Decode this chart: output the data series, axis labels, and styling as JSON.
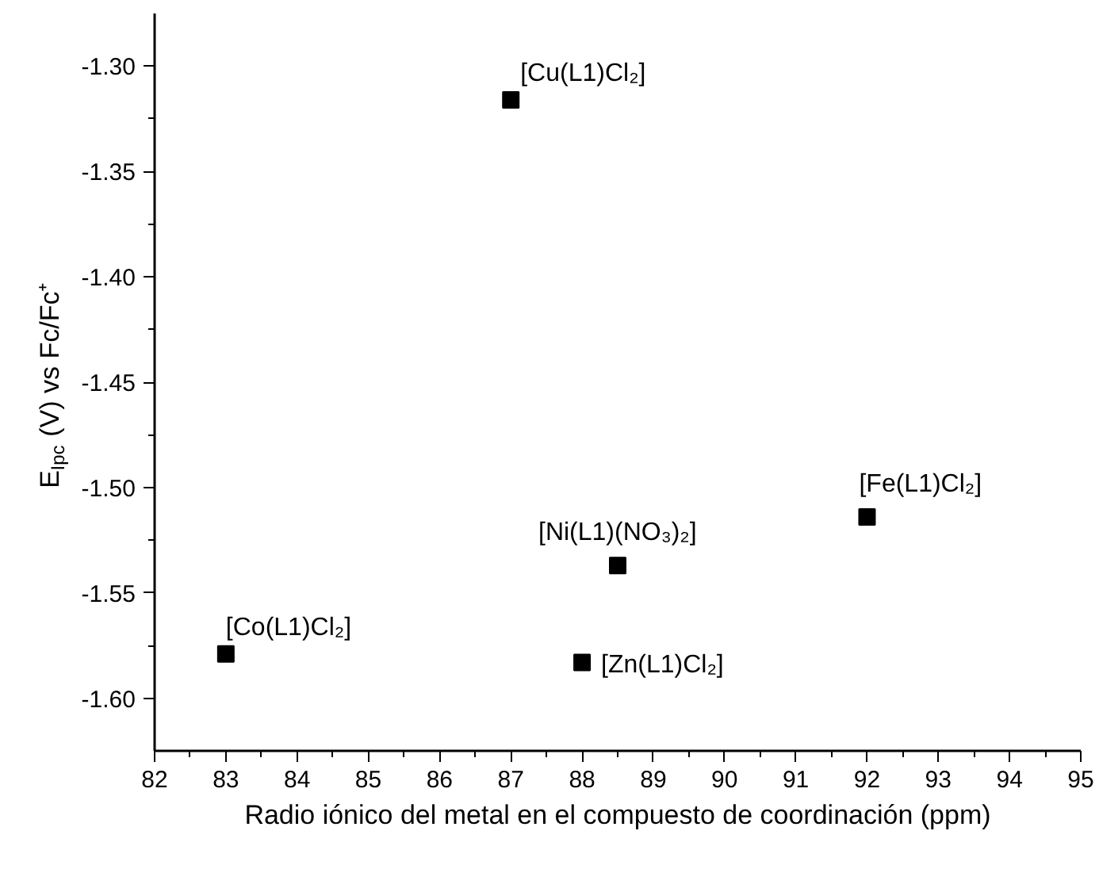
{
  "chart_data": {
    "type": "scatter",
    "xlabel": "Radio iónico del metal en el compuesto de coordinación (ppm)",
    "ylabel": "E$_{Ipc}$ (V) vs Fc/Fc⁺",
    "x": [
      87,
      83,
      92,
      88.5,
      88
    ],
    "values": [
      -1.316,
      -1.579,
      -1.514,
      -1.537,
      -1.583
    ],
    "color": "#000000",
    "marker": "square",
    "grid": false,
    "xlim": [
      82,
      95
    ],
    "xticks": [
      82,
      83,
      84,
      85,
      86,
      87,
      88,
      89,
      90,
      91,
      92,
      93,
      94,
      95
    ],
    "ylim": [
      -1.625,
      -1.275
    ],
    "yticks": [
      {
        "value": -1.3,
        "label": "-1.30"
      },
      {
        "value": -1.35,
        "label": "-1.35"
      },
      {
        "value": -1.4,
        "label": "-1.40"
      },
      {
        "value": -1.45,
        "label": "-1.45"
      },
      {
        "value": -1.5,
        "label": "-1.50"
      },
      {
        "value": -1.55,
        "label": "-1.55"
      },
      {
        "value": -1.6,
        "label": "-1.60"
      }
    ],
    "annotations": [
      {
        "text": "[Cu(L1)Cl₂]",
        "x": 87,
        "y": -1.316
      },
      {
        "text": "[Co(L1)Cl₂]",
        "x": 83,
        "y": -1.579
      },
      {
        "text": "[Fe(L1)Cl₂]",
        "x": 92,
        "y": -1.514
      },
      {
        "text": "[Ni(L1)(NO₃)₂]",
        "x": 88.5,
        "y": -1.537
      },
      {
        "text": "[Zn(L1)Cl₂]",
        "x": 88,
        "y": -1.583
      }
    ]
  }
}
